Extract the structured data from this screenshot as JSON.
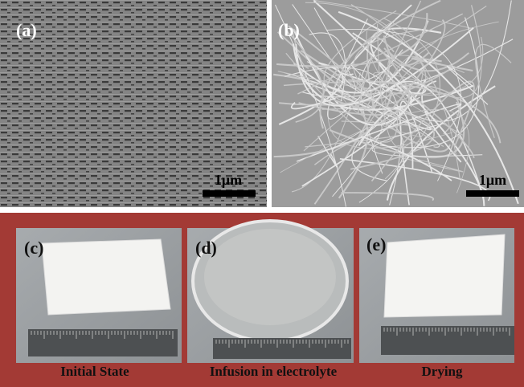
{
  "panels": [
    {
      "label": "(a)",
      "scale_bar": "1μm"
    },
    {
      "label": "(b)",
      "scale_bar": "1μm"
    },
    {
      "label": "(c)",
      "caption": "Initial State"
    },
    {
      "label": "(d)",
      "caption": "Infusion in electrolyte"
    },
    {
      "label": "(e)",
      "caption": "Drying"
    }
  ]
}
